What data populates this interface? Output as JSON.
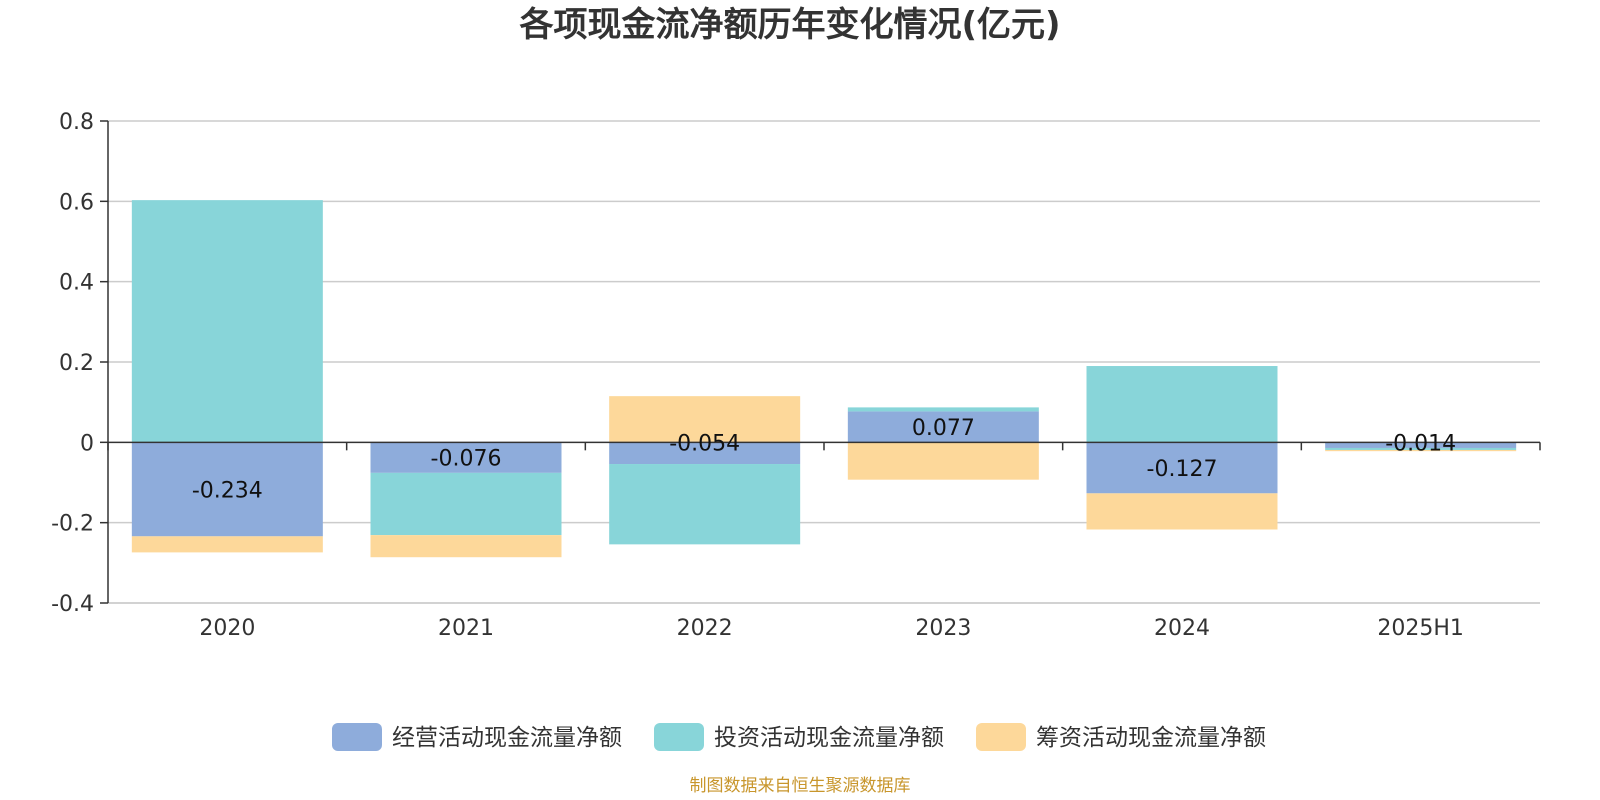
{
  "chart_data": {
    "type": "bar",
    "stacked": true,
    "title": "各项现金流净额历年变化情况(亿元)",
    "xlabel": "",
    "ylabel": "",
    "categories": [
      "2020",
      "2021",
      "2022",
      "2023",
      "2024",
      "2025H1"
    ],
    "ylim": [
      -0.4,
      0.8
    ],
    "yticks": [
      0.8,
      0.6,
      0.4,
      0.2,
      0,
      -0.2,
      -0.4
    ],
    "ytick_labels": [
      "0.8",
      "0.6",
      "0.4",
      "0.2",
      "0",
      "-0.2",
      "-0.4"
    ],
    "grid": true,
    "legend_position": "bottom",
    "series": [
      {
        "name": "经营活动现金流量净额",
        "color": "#8eacdb",
        "values": [
          -0.234,
          -0.076,
          -0.054,
          0.077,
          -0.127,
          -0.014
        ],
        "labels": [
          "-0.234",
          "-0.076",
          "-0.054",
          "0.077",
          "-0.127",
          "-0.014"
        ]
      },
      {
        "name": "投资活动现金流量净额",
        "color": "#88d5d9",
        "values": [
          0.603,
          -0.155,
          -0.2,
          0.01,
          0.19,
          -0.005
        ]
      },
      {
        "name": "筹资活动现金流量净额",
        "color": "#fdd89a",
        "values": [
          -0.04,
          -0.055,
          0.115,
          -0.093,
          -0.09,
          -0.003
        ]
      }
    ],
    "source_note": "制图数据来自恒生聚源数据库"
  }
}
